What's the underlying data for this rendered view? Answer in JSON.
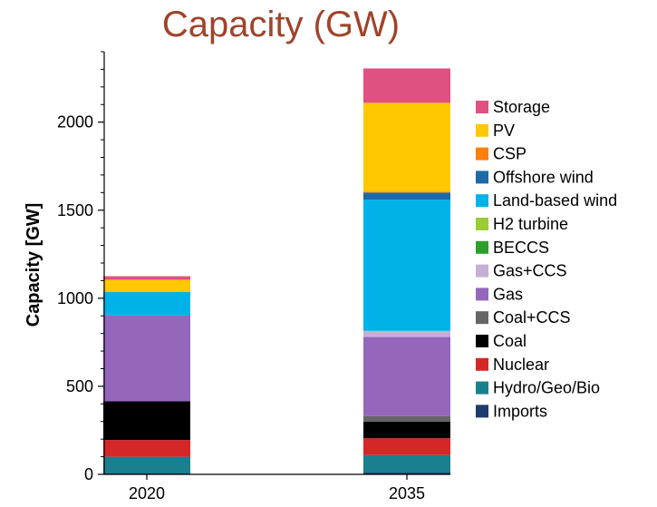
{
  "chart_data": {
    "type": "bar",
    "stacked": true,
    "title": "Capacity (GW)",
    "title_color": "#a0432a",
    "xlabel": "",
    "ylabel": "Capacity [GW]",
    "ylim": [
      0,
      2400
    ],
    "yticks": [
      0,
      500,
      1000,
      1500,
      2000
    ],
    "grid": false,
    "legend_position": "right",
    "categories": [
      "2020",
      "2035"
    ],
    "series": [
      {
        "name": "Imports",
        "color": "#1f3a6e",
        "values": [
          5,
          10
        ]
      },
      {
        "name": "Hydro/Geo/Bio",
        "color": "#1a7f8e",
        "values": [
          95,
          100
        ]
      },
      {
        "name": "Nuclear",
        "color": "#d62728",
        "values": [
          95,
          95
        ]
      },
      {
        "name": "Coal",
        "color": "#000000",
        "values": [
          220,
          95
        ]
      },
      {
        "name": "Coal+CCS",
        "color": "#666666",
        "values": [
          0,
          30
        ]
      },
      {
        "name": "Gas",
        "color": "#9467bd",
        "values": [
          490,
          450
        ]
      },
      {
        "name": "Gas+CCS",
        "color": "#c5b0d5",
        "values": [
          0,
          35
        ]
      },
      {
        "name": "BECCS",
        "color": "#2ca02c",
        "values": [
          0,
          0
        ]
      },
      {
        "name": "H2 turbine",
        "color": "#9acd32",
        "values": [
          0,
          0
        ]
      },
      {
        "name": "Land-based wind",
        "color": "#00b2e8",
        "values": [
          130,
          745
        ]
      },
      {
        "name": "Offshore wind",
        "color": "#1f6aa5",
        "values": [
          0,
          40
        ]
      },
      {
        "name": "CSP",
        "color": "#ff7f0e",
        "values": [
          2,
          5
        ]
      },
      {
        "name": "PV",
        "color": "#ffc800",
        "values": [
          68,
          505
        ]
      },
      {
        "name": "Storage",
        "color": "#e05080",
        "values": [
          20,
          195
        ]
      }
    ]
  }
}
